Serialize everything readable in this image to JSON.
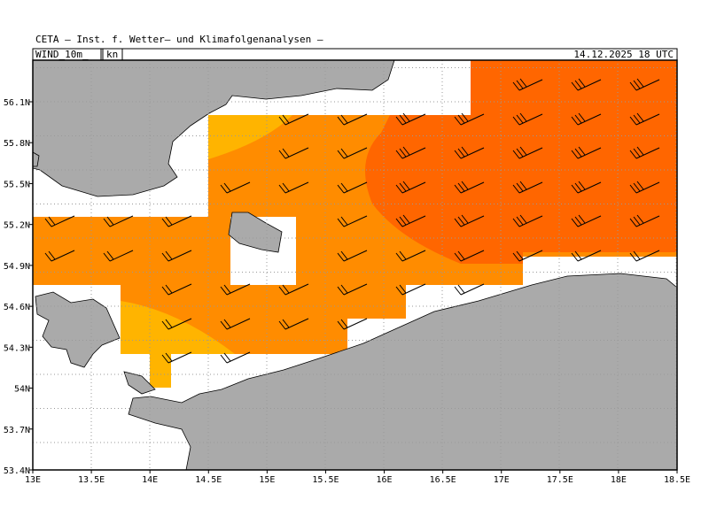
{
  "header": {
    "title": "CETA – Inst. f. Wetter– und Klimafolgenanalysen –",
    "variable": "WIND_10m_",
    "unit": "kn",
    "time": "14.12.2025 18 UTC"
  },
  "map": {
    "xlim": [
      13,
      18.5
    ],
    "ylim": [
      53.4,
      56.405
    ],
    "xticks": [
      {
        "value": 13,
        "label": "13E"
      },
      {
        "value": 13.5,
        "label": "13.5E"
      },
      {
        "value": 14,
        "label": "14E"
      },
      {
        "value": 14.5,
        "label": "14.5E"
      },
      {
        "value": 15,
        "label": "15E"
      },
      {
        "value": 15.5,
        "label": "15.5E"
      },
      {
        "value": 16,
        "label": "16E"
      },
      {
        "value": 16.5,
        "label": "16.5E"
      },
      {
        "value": 17,
        "label": "17E"
      },
      {
        "value": 17.5,
        "label": "17.5E"
      },
      {
        "value": 18,
        "label": "18E"
      },
      {
        "value": 18.5,
        "label": "18.5E"
      }
    ],
    "yticks": [
      {
        "value": 53.4,
        "label": "53.4N"
      },
      {
        "value": 53.7,
        "label": "53.7N"
      },
      {
        "value": 54,
        "label": "54N"
      },
      {
        "value": 54.3,
        "label": "54.3N"
      },
      {
        "value": 54.6,
        "label": "54.6N"
      },
      {
        "value": 54.9,
        "label": "54.9N"
      },
      {
        "value": 55.2,
        "label": "55.2N"
      },
      {
        "value": 55.5,
        "label": "55.5N"
      },
      {
        "value": 55.8,
        "label": "55.8N"
      },
      {
        "value": 56.1,
        "label": "56.1N"
      }
    ]
  }
}
